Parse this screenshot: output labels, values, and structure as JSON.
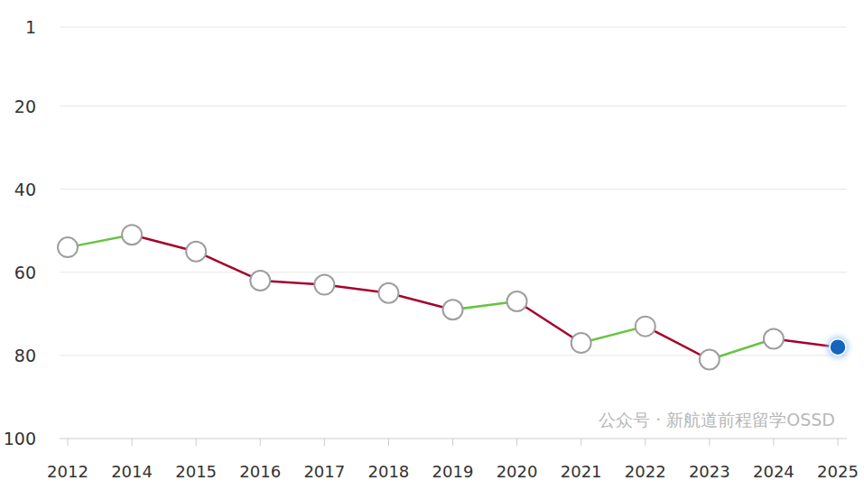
{
  "chart_data": {
    "type": "line",
    "categories": [
      "2012",
      "2014",
      "2015",
      "2016",
      "2017",
      "2018",
      "2019",
      "2020",
      "2021",
      "2022",
      "2023",
      "2024",
      "2025"
    ],
    "series": [
      {
        "color": "#a6002c",
        "marker": "circle",
        "values": [
          54,
          51,
          55,
          62,
          63,
          65,
          69,
          67,
          77,
          73,
          81,
          76,
          78
        ]
      }
    ],
    "ylim": [
      1,
      100
    ],
    "yticks": [
      1,
      20,
      40,
      60,
      80,
      100
    ],
    "grid": true,
    "annotations": [
      {
        "text": "公众号 · 新航道前程留学OSSD"
      }
    ]
  }
}
